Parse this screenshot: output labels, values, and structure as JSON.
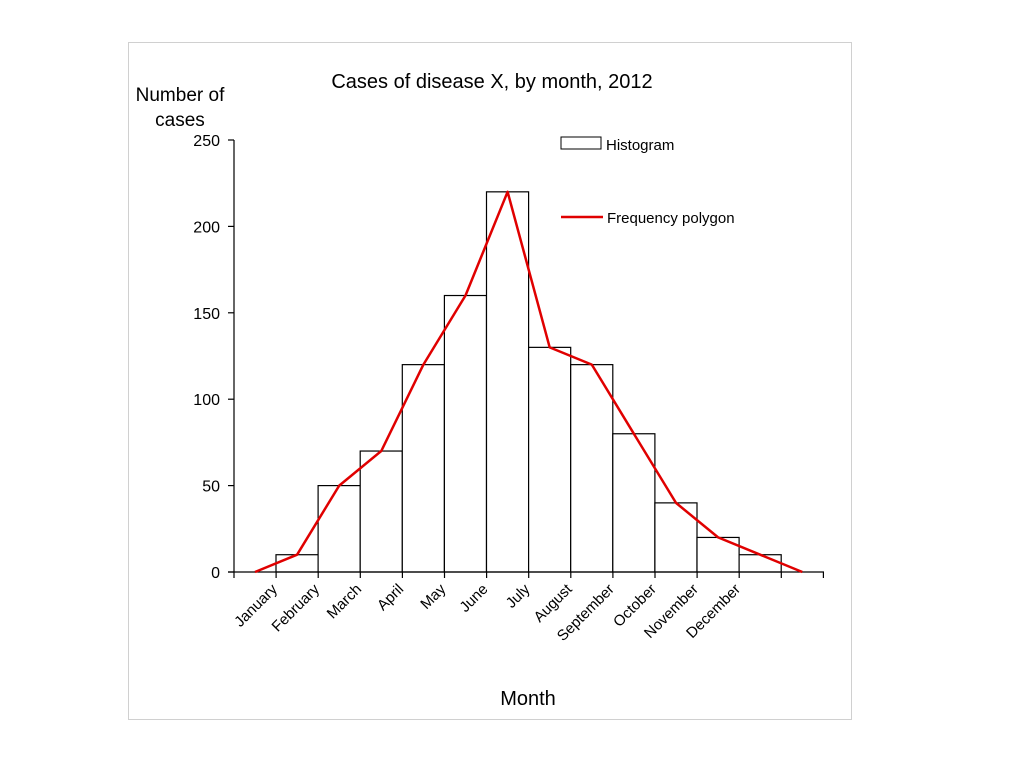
{
  "chart_data": {
    "type": "bar",
    "title": "Cases of disease X,  by month, 2012",
    "ylabel_line1": "Number of",
    "ylabel_line2": "cases",
    "xlabel": "Month",
    "ylim": [
      0,
      250
    ],
    "yticks": [
      "0",
      "50",
      "100",
      "150",
      "200",
      "250"
    ],
    "categories": [
      "January",
      "February",
      "March",
      "April",
      "May",
      "June",
      "July",
      "August",
      "September",
      "October",
      "November",
      "December"
    ],
    "values": [
      10,
      50,
      70,
      120,
      160,
      220,
      130,
      120,
      80,
      40,
      20,
      10
    ],
    "polygon_values": [
      0,
      10,
      50,
      70,
      120,
      160,
      220,
      130,
      120,
      80,
      40,
      20,
      10,
      0
    ],
    "legend": {
      "histogram": "Histogram",
      "polygon": "Frequency polygon"
    },
    "colors": {
      "bar_fill": "#ffffff",
      "bar_stroke": "#000000",
      "polygon": "#e00000"
    }
  }
}
